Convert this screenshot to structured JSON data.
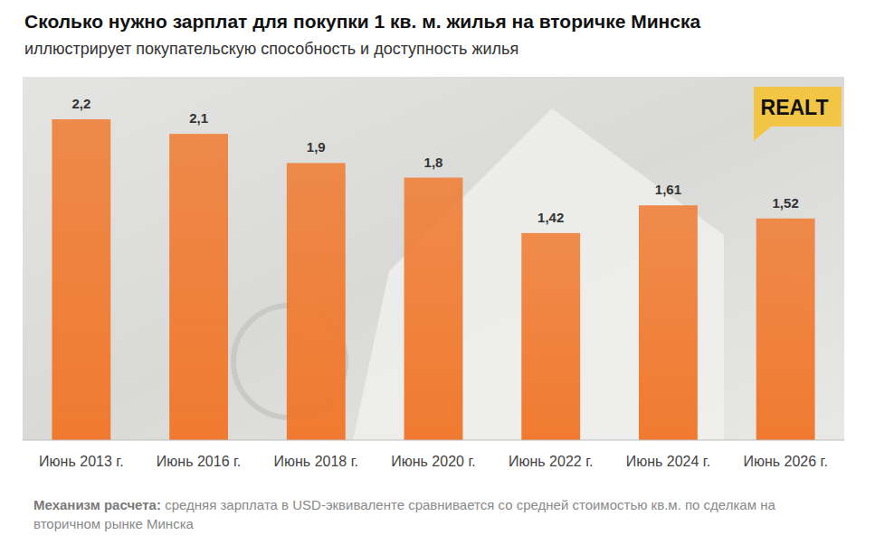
{
  "chart_data": {
    "type": "bar",
    "title": "Сколько нужно зарплат для покупки 1 кв. м. жилья на вторичке Минска",
    "subtitle": "иллюстрирует покупательскую способность и доступность жилья",
    "logo": "REALT",
    "footnote_label": "Механизм расчета:",
    "footnote": "средняя зарплата в USD-эквиваленте сравнивается со средней стоимостью кв.м. по сделкам на вторичном рынке Минска",
    "categories": [
      "Июнь 2013 г.",
      "Июнь 2016 г.",
      "Июнь 2018 г.",
      "Июнь 2020 г.",
      "Июнь 2022 г.",
      "Июнь 2024 г.",
      "Июнь 2026 г."
    ],
    "values": [
      2.2,
      2.1,
      1.9,
      1.8,
      1.42,
      1.61,
      1.52
    ],
    "value_labels": [
      "2,2",
      "2,1",
      "1,9",
      "1,8",
      "1,42",
      "1,61",
      "1,52"
    ],
    "color": "#f07a30",
    "ylim": [
      0,
      2.2
    ],
    "grid": false,
    "data_labels": true,
    "tick_labels": "x"
  }
}
